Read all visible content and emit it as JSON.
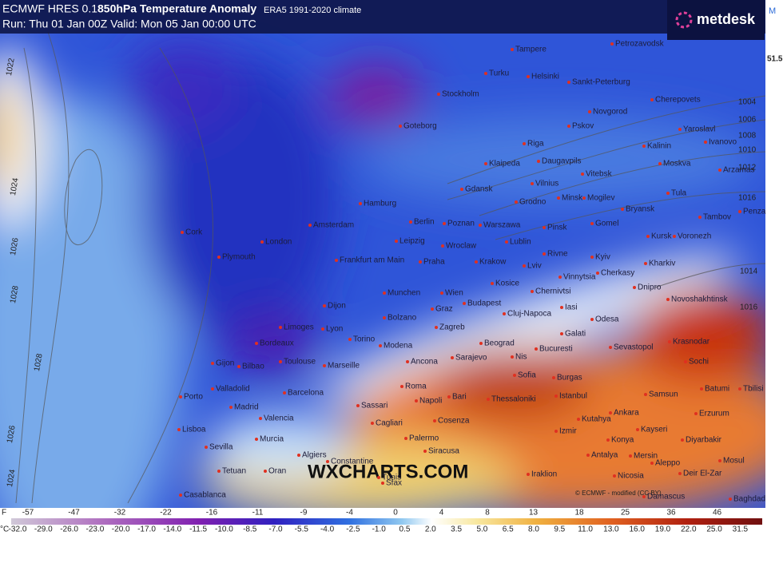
{
  "header": {
    "model": "ECMWF HRES 0.1",
    "title": "850hPa Temperature Anomaly",
    "climate": "ERA5 1991-2020 climate",
    "run": "Run: Thu 01 Jan 00Z Valid: Mon 05 Jan 00:00 UTC"
  },
  "logo": "metdesk",
  "watermark": "WXCHARTS.COM",
  "credit": "© ECMWF - modified (CC BY)",
  "side_panel": {
    "tab": "M",
    "value": "51.5"
  },
  "cities": [
    "Petrozavodsk",
    "Tampere",
    "Turku",
    "Helsinki",
    "Sankt-Peterburg",
    "Stockholm",
    "Novgorod",
    "Cherepovets",
    "Goteborg",
    "Pskov",
    "Yaroslavl",
    "Ivanovo",
    "Riga",
    "Kalinin",
    "Moskva",
    "Arzamas",
    "Klaipeda",
    "Daugavpils",
    "Vitebsk",
    "Vilnius",
    "Tula",
    "Gdansk",
    "Minsk",
    "Mogilev",
    "Grodno",
    "Hamburg",
    "Bryansk",
    "Tambov",
    "Penza",
    "Berlin",
    "Poznan",
    "Warszawa",
    "Pinsk",
    "Gomel",
    "Kursk",
    "Voronezh",
    "Amsterdam",
    "Cork",
    "London",
    "Plymouth",
    "Leipzig",
    "Wroclaw",
    "Lublin",
    "Rivne",
    "Kyiv",
    "Frankfurt am Main",
    "Praha",
    "Krakow",
    "Lviv",
    "Kharkiv",
    "Vinnytsia",
    "Cherkasy",
    "Dnipro",
    "Kosice",
    "Chernivtsi",
    "Munchen",
    "Wien",
    "Budapest",
    "Iasi",
    "Novoshakhtinsk",
    "Dijon",
    "Graz",
    "Cluj-Napoca",
    "Odesa",
    "Bolzano",
    "Zagreb",
    "Limoges",
    "Lyon",
    "Torino",
    "Modena",
    "Galati",
    "Beograd",
    "Bordeaux",
    "Sevastopol",
    "Krasnodar",
    "Bucuresti",
    "Toulouse",
    "Marseille",
    "Ancona",
    "Sarajevo",
    "Nis",
    "Sochi",
    "Gijon",
    "Bilbao",
    "Sofia",
    "Burgas",
    "Batumi",
    "Tbilisi",
    "Valladolid",
    "Barcelona",
    "Roma",
    "Bari",
    "Istanbul",
    "Samsun",
    "Napoli",
    "Thessaloniki",
    "Erzurum",
    "Porto",
    "Madrid",
    "Sassari",
    "Kutahya",
    "Ankara",
    "Cagliari",
    "Valencia",
    "Cosenza",
    "Izmir",
    "Kayseri",
    "Diyarbakir",
    "Lisboa",
    "Murcia",
    "Sevilla",
    "Palermo",
    "Siracusa",
    "Konya",
    "Mersin",
    "Mosul",
    "Antalya",
    "Aleppo",
    "Algiers",
    "Constantine",
    "Tetuan",
    "Oran",
    "Tunis",
    "Iraklion",
    "Nicosia",
    "Deir El-Zar",
    "Sfax",
    "Casablanca",
    "Damascus",
    "Baghdad"
  ],
  "isobars": [
    "1022",
    "1024",
    "1026",
    "1028",
    "1028",
    "1026",
    "1024",
    "1004",
    "1006",
    "1008",
    "1010",
    "1012",
    "1016",
    "1014",
    "1016"
  ],
  "scale": {
    "f_unit": "F",
    "f_labels": [
      "-57",
      "-47",
      "-32",
      "-22",
      "-16",
      "-11",
      "-9",
      "-4",
      "0",
      "4",
      "8",
      "13",
      "18",
      "25",
      "36",
      "46"
    ],
    "c_unit": "°C",
    "c_labels": [
      "-32.0",
      "-29.0",
      "-26.0",
      "-23.0",
      "-20.0",
      "-17.0",
      "-14.0",
      "-11.5",
      "-10.0",
      "-8.5",
      "-7.0",
      "-5.5",
      "-4.0",
      "-2.5",
      "-1.0",
      "0.5",
      "2.0",
      "3.5",
      "5.0",
      "6.5",
      "8.0",
      "9.5",
      "11.0",
      "13.0",
      "16.0",
      "19.0",
      "22.0",
      "25.0",
      "31.5"
    ]
  }
}
